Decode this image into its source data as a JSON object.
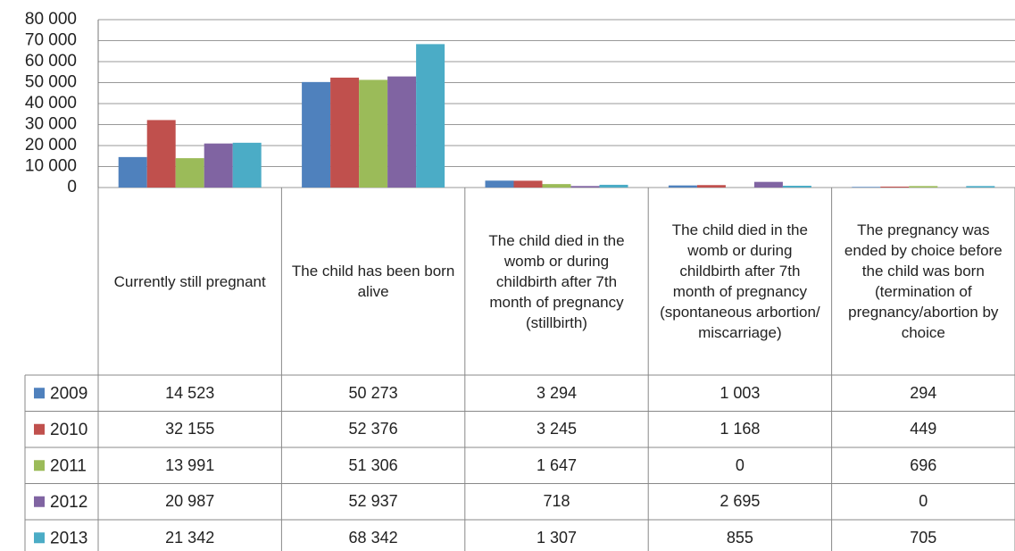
{
  "chart_data": {
    "type": "bar",
    "categories": [
      "Currently still pregnant",
      "The child has been born alive",
      "The child died in the womb or during childbirth after 7th month of pregnancy (stillbirth)",
      "The child died in the womb or during childbirth after 7th month of pregnancy (spontaneous arbortion/ miscarriage)",
      "The pregnancy was ended by choice before the child was born (termination of pregnancy/abortion by choice"
    ],
    "series": [
      {
        "name": "2009",
        "color": "#4f81bd",
        "values": [
          14523,
          50273,
          3294,
          1003,
          294
        ],
        "value_labels": [
          "14 523",
          "50 273",
          "3 294",
          "1 003",
          "294"
        ]
      },
      {
        "name": "2010",
        "color": "#c0504d",
        "values": [
          32155,
          52376,
          3245,
          1168,
          449
        ],
        "value_labels": [
          "32 155",
          "52 376",
          "3 245",
          "1 168",
          "449"
        ]
      },
      {
        "name": "2011",
        "color": "#9bbb59",
        "values": [
          13991,
          51306,
          1647,
          0,
          696
        ],
        "value_labels": [
          "13 991",
          "51 306",
          "1 647",
          "0",
          "696"
        ]
      },
      {
        "name": "2012",
        "color": "#8064a2",
        "values": [
          20987,
          52937,
          718,
          2695,
          0
        ],
        "value_labels": [
          "20 987",
          "52 937",
          "718",
          "2 695",
          "0"
        ]
      },
      {
        "name": "2013",
        "color": "#4bacc6",
        "values": [
          21342,
          68342,
          1307,
          855,
          705
        ],
        "value_labels": [
          "21 342",
          "68 342",
          "1 307",
          "855",
          "705"
        ]
      }
    ],
    "ylim": [
      0,
      80000
    ],
    "yticks": [
      0,
      {
        "value": 10000,
        "label": "10 000"
      },
      {
        "value": 20000,
        "label": "20 000"
      },
      {
        "value": 30000,
        "label": "30 000"
      },
      {
        "value": 40000,
        "label": "40 000"
      },
      {
        "value": 50000,
        "label": "50 000"
      },
      {
        "value": 60000,
        "label": "60 000"
      },
      {
        "value": 70000,
        "label": "70 000"
      },
      {
        "value": 80000,
        "label": "80 000"
      }
    ],
    "grid": true
  }
}
